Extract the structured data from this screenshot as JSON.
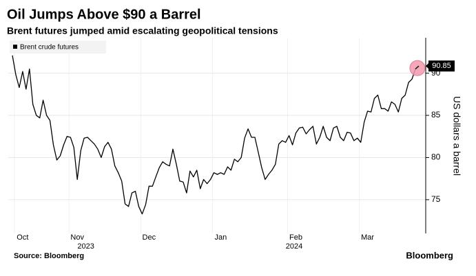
{
  "chart_data": {
    "type": "line",
    "title": "Oil Jumps Above $90 a Barrel",
    "subtitle": "Brent futures jumped amid escalating geopolitical tensions",
    "y_label": "US dollars a barrel",
    "source": "Source: Bloomberg",
    "brand": "Bloomberg",
    "years": [
      "2023",
      "2024"
    ],
    "categories": [
      null,
      null,
      null,
      "Oct",
      null,
      null,
      null,
      null,
      null,
      null,
      null,
      null,
      null,
      null,
      null,
      null,
      null,
      null,
      null,
      "Nov",
      null,
      null,
      null,
      null,
      null,
      null,
      null,
      null,
      null,
      null,
      null,
      null,
      null,
      null,
      null,
      null,
      null,
      null,
      null,
      null,
      "Dec",
      null,
      null,
      null,
      null,
      null,
      null,
      null,
      null,
      null,
      null,
      null,
      null,
      null,
      null,
      null,
      null,
      null,
      null,
      null,
      null,
      "Jan",
      null,
      null,
      null,
      null,
      null,
      null,
      null,
      null,
      null,
      null,
      null,
      null,
      null,
      null,
      null,
      null,
      null,
      null,
      null,
      null,
      null,
      "Feb",
      null,
      null,
      null,
      null,
      null,
      null,
      null,
      null,
      null,
      null,
      null,
      null,
      null,
      null,
      null,
      null,
      null,
      null,
      null,
      null,
      "Mar",
      null,
      null,
      null,
      null,
      null,
      null,
      null,
      null,
      null,
      null,
      null,
      null,
      null,
      null,
      null
    ],
    "series": [
      {
        "name": "Brent crude futures",
        "color": "#000000",
        "values": [
          92.1,
          89.8,
          88.3,
          90.2,
          88.1,
          90.5,
          86.3,
          85,
          84.7,
          86.8,
          85,
          84.4,
          81.5,
          79.7,
          80.2,
          81.5,
          82.5,
          82.4,
          81.2,
          77.4,
          80.8,
          82.3,
          82.4,
          82,
          81.6,
          81,
          80,
          81.3,
          81.8,
          81,
          79,
          78.2,
          77.2,
          74.5,
          74.2,
          75.8,
          76,
          74.2,
          73.3,
          74.4,
          76.6,
          76.6,
          77.7,
          78.8,
          79.5,
          79.2,
          79,
          81,
          79.2,
          77.2,
          77.1,
          75.8,
          78.4,
          77.7,
          78.5,
          76.3,
          77.4,
          76.9,
          77.4,
          78.2,
          78,
          78.2,
          78,
          78.9,
          78.5,
          79.8,
          79.5,
          80,
          82.3,
          83.4,
          82.4,
          82.4,
          80.6,
          78.8,
          77.4,
          78,
          78.5,
          79.2,
          81.6,
          82,
          81.8,
          82.6,
          81.5,
          82.9,
          83.5,
          83.6,
          82.8,
          83.3,
          83.7,
          81.6,
          82.4,
          83.7,
          82.4,
          82,
          83.5,
          83.7,
          82.4,
          82,
          83,
          82.9,
          82,
          82.3,
          81.8,
          84.2,
          85.5,
          85.4,
          87,
          87.4,
          85.8,
          85.8,
          85.5,
          86.6,
          86.3,
          85.4,
          87,
          87.4,
          88.9,
          89.3,
          90.5,
          90.85
        ]
      }
    ],
    "ylim": [
      71,
      94.2
    ],
    "yticks": [
      75,
      80,
      85,
      90
    ],
    "grid": true,
    "highlight_color": "#f29aae",
    "legend": "top-left"
  }
}
